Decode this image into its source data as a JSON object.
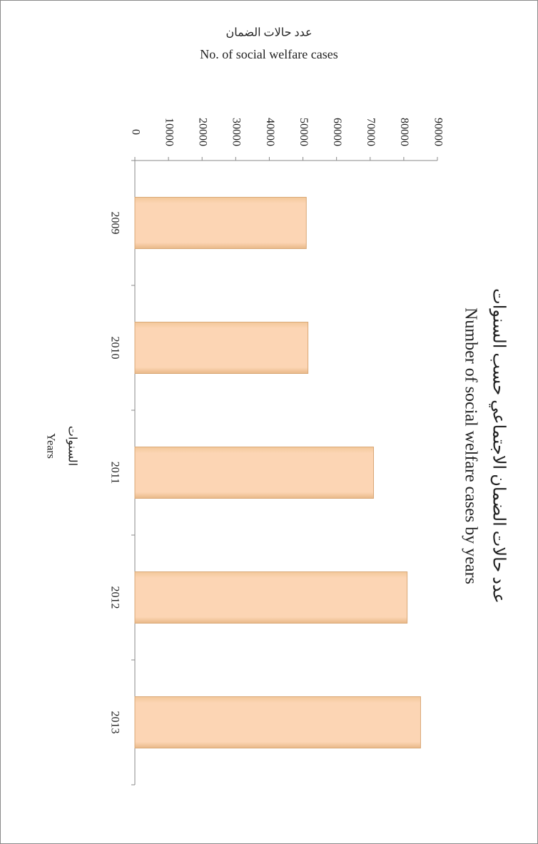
{
  "chart_data": {
    "type": "bar",
    "orientation": "horizontal",
    "title": "عدد حالات الضمان الاجتماعي  حسب السنوات",
    "subtitle": "Number of social welfare cases by years",
    "value_axis_title": [
      "عدد حالات الضمان",
      "No. of social welfare cases"
    ],
    "category_axis_title": [
      "السنوات",
      "Years"
    ],
    "categories": [
      "2009",
      "2010",
      "2011",
      "2012",
      "2013"
    ],
    "values": [
      51000,
      51500,
      71000,
      81000,
      85000
    ],
    "color": "#fcd5b4",
    "xlim": [
      0,
      90000
    ],
    "xticks": [
      0,
      10000,
      20000,
      30000,
      40000,
      50000,
      60000,
      70000,
      80000,
      90000
    ]
  }
}
